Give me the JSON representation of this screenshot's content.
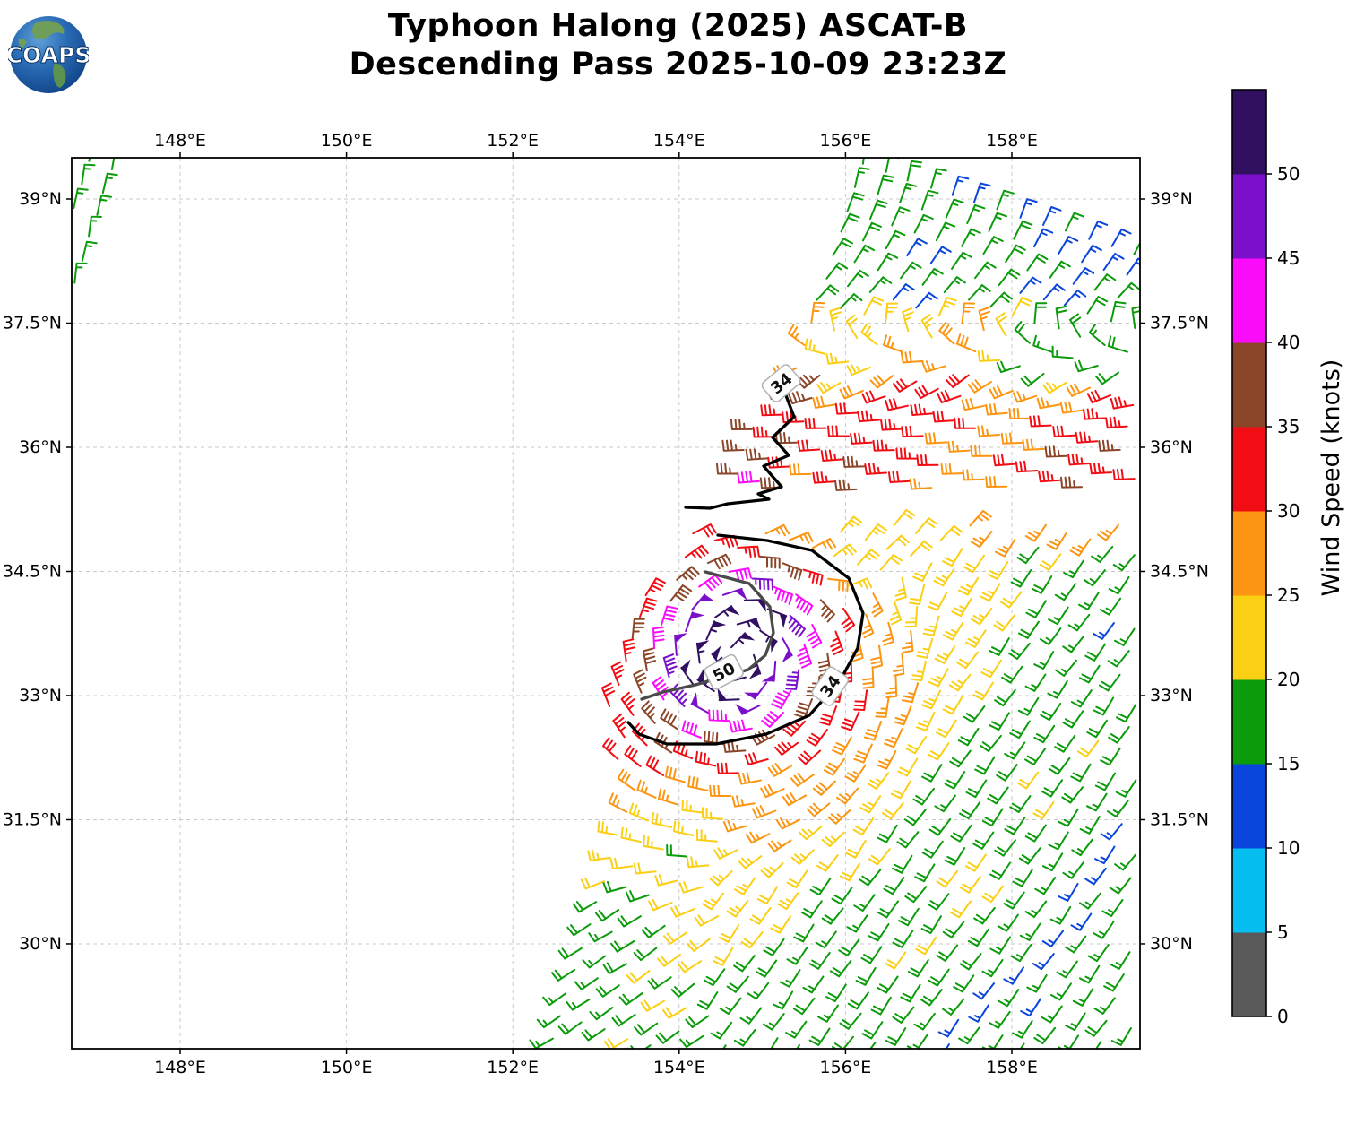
{
  "header": {
    "title_line1": "Typhoon Halong (2025) ASCAT-B",
    "title_line2": "Descending Pass 2025-10-09 23:23Z",
    "logo_text": "COAPS"
  },
  "axes": {
    "lon_ticks": [
      {
        "value": 148,
        "label": "148°E"
      },
      {
        "value": 150,
        "label": "150°E"
      },
      {
        "value": 152,
        "label": "152°E"
      },
      {
        "value": 154,
        "label": "154°E"
      },
      {
        "value": 156,
        "label": "156°E"
      },
      {
        "value": 158,
        "label": "158°E"
      }
    ],
    "lat_ticks": [
      {
        "value": 39,
        "label": "39°N"
      },
      {
        "value": 37.5,
        "label": "37.5°N"
      },
      {
        "value": 36,
        "label": "36°N"
      },
      {
        "value": 34.5,
        "label": "34.5°N"
      },
      {
        "value": 33,
        "label": "33°N"
      },
      {
        "value": 31.5,
        "label": "31.5°N"
      },
      {
        "value": 30,
        "label": "30°N"
      }
    ],
    "lon_range": [
      146.7,
      159.55
    ],
    "lat_range": [
      28.73,
      39.5
    ]
  },
  "colorbar": {
    "label": "Wind Speed (knots)",
    "levels": [
      0,
      5,
      10,
      15,
      20,
      25,
      30,
      35,
      40,
      45,
      50
    ],
    "tick_labels": [
      "0",
      "5",
      "10",
      "15",
      "20",
      "25",
      "30",
      "35",
      "40",
      "45",
      "50"
    ],
    "colors_bottom_to_top": [
      "#595959",
      "#06BEF0",
      "#0A45DC",
      "#0B9B0B",
      "#FBCF14",
      "#FC9512",
      "#F20D15",
      "#8B4529",
      "#FA0CFA",
      "#7A10C9",
      "#311062"
    ]
  },
  "chart_data": {
    "type": "wind_barb_map",
    "title": "Typhoon Halong (2025) ASCAT-B Descending Pass 2025-10-09 23:23Z",
    "storm_name": "Halong",
    "satellite": "ASCAT-B",
    "pass_type": "Descending",
    "datetime_utc": "2025-10-09 23:23Z",
    "units": "knots",
    "grid_on": true,
    "storm": {
      "center_lon": 154.75,
      "center_lat": 33.45,
      "max_wind_kt": 55,
      "radius_34kt_deg": 1.4,
      "radius_50kt_deg": 0.62
    },
    "contours": [
      {
        "level": 34,
        "color": "#000000",
        "points": [
          [
            155.23,
            36.77
          ],
          [
            155.38,
            36.37
          ],
          [
            155.12,
            36.12
          ],
          [
            155.32,
            35.9
          ],
          [
            155.01,
            35.77
          ],
          [
            155.23,
            35.52
          ],
          [
            154.95,
            35.44
          ],
          [
            155.08,
            35.37
          ],
          [
            154.58,
            35.32
          ],
          [
            154.37,
            35.26
          ],
          [
            154.08,
            35.27
          ]
        ],
        "label": {
          "text": "34",
          "lon": 155.23,
          "lat": 36.77,
          "rot": -40
        }
      },
      {
        "level": 34,
        "color": "#000000",
        "points": [
          [
            154.47,
            34.94
          ],
          [
            155.06,
            34.87
          ],
          [
            155.6,
            34.75
          ],
          [
            156.04,
            34.42
          ],
          [
            156.21,
            34.0
          ],
          [
            156.15,
            33.57
          ],
          [
            155.93,
            33.17
          ],
          [
            155.56,
            32.76
          ],
          [
            155.05,
            32.53
          ],
          [
            154.44,
            32.41
          ],
          [
            153.85,
            32.41
          ],
          [
            153.52,
            32.53
          ],
          [
            153.39,
            32.67
          ]
        ],
        "label": {
          "text": "34",
          "lon": 155.82,
          "lat": 33.11,
          "rot": -55
        }
      },
      {
        "level": 50,
        "color": "#4a4a4a",
        "points": [
          [
            154.31,
            34.49
          ],
          [
            154.84,
            34.35
          ],
          [
            155.09,
            34.07
          ],
          [
            155.13,
            33.76
          ],
          [
            155.04,
            33.49
          ],
          [
            154.83,
            33.31
          ],
          [
            154.2,
            33.13
          ],
          [
            153.81,
            33.04
          ],
          [
            153.55,
            32.96
          ]
        ],
        "label": {
          "text": "50",
          "lon": 154.54,
          "lat": 33.28,
          "rot": -28
        }
      }
    ],
    "wind_field": {
      "barb_spacing_px": 26.5,
      "inflow_deg": 85,
      "radial_profile": {
        "r_deg": [
          0,
          0.42,
          0.62,
          0.85,
          1.07,
          1.28,
          1.72,
          2.3,
          3.3,
          4.6,
          7
        ],
        "speed_kt": [
          53,
          53,
          50.5,
          45,
          40,
          35,
          30,
          25,
          21,
          18,
          16.5
        ]
      },
      "asymmetry": {
        "amp_kt": 2.2,
        "max_dir_deg": 300
      },
      "ne_wedge_from_dir": 43,
      "east_bg_from_dir": 215,
      "south_bg_from_dir": 225,
      "north_band_dir_profile": [
        [
          35.35,
          -92
        ],
        [
          36.4,
          -92
        ],
        [
          36.88,
          -130
        ],
        [
          37.67,
          43
        ],
        [
          39.5,
          8
        ]
      ],
      "swath": {
        "top_lat": 39.5,
        "top_lon": 155.93,
        "dlon_dlat": 0.333,
        "bulge": {
          "lat": 33.58,
          "lon_amp": 0.797,
          "lat_sigma": 1.495
        }
      },
      "gap": {
        "lat1_at_155E": 35.44,
        "slope1": 0.0151,
        "lat2_at_155E": 35.03,
        "slope2": 0.0241
      },
      "left_strip": {
        "dir_from": 10,
        "green_speed": 17,
        "yellow_speed": 22.5,
        "green_above_lat": 37.85
      }
    }
  }
}
